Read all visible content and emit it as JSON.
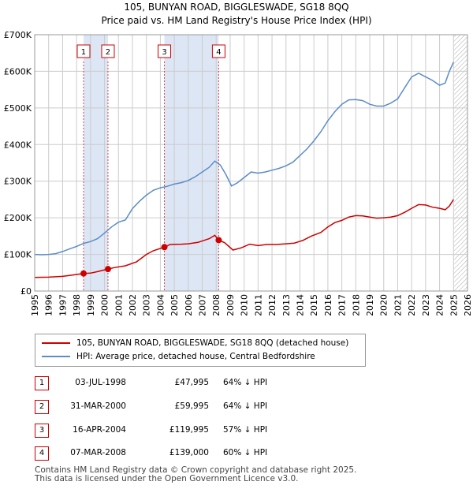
{
  "chart_data": {
    "type": "line",
    "title": "105, BUNYAN ROAD, BIGGLESWADE, SG18 8QQ",
    "subtitle": "Price paid vs. HM Land Registry's House Price Index (HPI)",
    "xlim": [
      1995,
      2026
    ],
    "ylim": [
      0,
      700000
    ],
    "x_ticks": [
      1995,
      1996,
      1997,
      1998,
      1999,
      2000,
      2001,
      2002,
      2003,
      2004,
      2005,
      2006,
      2007,
      2008,
      2009,
      2010,
      2011,
      2012,
      2013,
      2014,
      2015,
      2016,
      2017,
      2018,
      2019,
      2020,
      2021,
      2022,
      2023,
      2024,
      2025,
      2026
    ],
    "y_ticks": [
      0,
      100000,
      200000,
      300000,
      400000,
      500000,
      600000,
      700000
    ],
    "y_tick_labels": [
      "£0",
      "£100K",
      "£200K",
      "£300K",
      "£400K",
      "£500K",
      "£600K",
      "£700K"
    ],
    "shaded_ranges": [
      [
        1998.5,
        2000.25
      ],
      [
        2004.29,
        2008.18
      ]
    ],
    "forecast_start": 2025.05,
    "colors": {
      "property": "#cc0000",
      "hpi": "#5b8cc8",
      "shade": "#dde6f5",
      "grid": "#cccccc"
    },
    "series": [
      {
        "name": "105, BUNYAN ROAD, BIGGLESWADE, SG18 8QQ (detached house)",
        "color": "#cc0000",
        "points": [
          [
            1995.0,
            37000
          ],
          [
            1996.0,
            38000
          ],
          [
            1997.0,
            40000
          ],
          [
            1997.6,
            43000
          ],
          [
            1998.5,
            47995
          ],
          [
            1999.0,
            49000
          ],
          [
            1999.5,
            53000
          ],
          [
            2000.25,
            59995
          ],
          [
            2000.7,
            64000
          ],
          [
            2001.5,
            69000
          ],
          [
            2002.3,
            80000
          ],
          [
            2003.0,
            100000
          ],
          [
            2003.5,
            110000
          ],
          [
            2004.29,
            119995
          ],
          [
            2004.7,
            127000
          ],
          [
            2005.5,
            128000
          ],
          [
            2006.0,
            129000
          ],
          [
            2006.7,
            133000
          ],
          [
            2007.5,
            143000
          ],
          [
            2007.9,
            152000
          ],
          [
            2008.18,
            139000
          ],
          [
            2008.6,
            132000
          ],
          [
            2009.2,
            112000
          ],
          [
            2009.8,
            118000
          ],
          [
            2010.4,
            128000
          ],
          [
            2011.0,
            124000
          ],
          [
            2011.6,
            127000
          ],
          [
            2012.3,
            127000
          ],
          [
            2013.0,
            129000
          ],
          [
            2013.6,
            131000
          ],
          [
            2014.2,
            138000
          ],
          [
            2014.8,
            150000
          ],
          [
            2015.5,
            160000
          ],
          [
            2016.0,
            175000
          ],
          [
            2016.5,
            187000
          ],
          [
            2017.0,
            193000
          ],
          [
            2017.5,
            202000
          ],
          [
            2018.0,
            206000
          ],
          [
            2018.5,
            205000
          ],
          [
            2019.0,
            202000
          ],
          [
            2019.5,
            199000
          ],
          [
            2020.0,
            200000
          ],
          [
            2020.5,
            202000
          ],
          [
            2021.0,
            206000
          ],
          [
            2021.5,
            215000
          ],
          [
            2022.0,
            226000
          ],
          [
            2022.5,
            236000
          ],
          [
            2023.0,
            235000
          ],
          [
            2023.5,
            229000
          ],
          [
            2024.0,
            226000
          ],
          [
            2024.4,
            222000
          ],
          [
            2024.7,
            232000
          ],
          [
            2025.0,
            250000
          ]
        ]
      },
      {
        "name": "HPI: Average price, detached house, Central Bedfordshire",
        "color": "#5b8cc8",
        "points": [
          [
            1995.0,
            100000
          ],
          [
            1995.5,
            99000
          ],
          [
            1996.0,
            100000
          ],
          [
            1996.5,
            102000
          ],
          [
            1997.0,
            108000
          ],
          [
            1997.5,
            115000
          ],
          [
            1998.0,
            122000
          ],
          [
            1998.5,
            130000
          ],
          [
            1999.0,
            135000
          ],
          [
            1999.5,
            143000
          ],
          [
            2000.0,
            158000
          ],
          [
            2000.5,
            175000
          ],
          [
            2001.0,
            188000
          ],
          [
            2001.5,
            194000
          ],
          [
            2002.0,
            225000
          ],
          [
            2002.5,
            245000
          ],
          [
            2003.0,
            262000
          ],
          [
            2003.5,
            275000
          ],
          [
            2004.0,
            282000
          ],
          [
            2004.5,
            286000
          ],
          [
            2005.0,
            292000
          ],
          [
            2005.5,
            296000
          ],
          [
            2006.0,
            302000
          ],
          [
            2006.5,
            312000
          ],
          [
            2007.0,
            325000
          ],
          [
            2007.5,
            338000
          ],
          [
            2007.9,
            355000
          ],
          [
            2008.3,
            344000
          ],
          [
            2008.7,
            318000
          ],
          [
            2009.1,
            287000
          ],
          [
            2009.5,
            295000
          ],
          [
            2010.0,
            310000
          ],
          [
            2010.5,
            325000
          ],
          [
            2011.0,
            322000
          ],
          [
            2011.5,
            325000
          ],
          [
            2012.0,
            330000
          ],
          [
            2012.5,
            335000
          ],
          [
            2013.0,
            342000
          ],
          [
            2013.5,
            352000
          ],
          [
            2014.0,
            370000
          ],
          [
            2014.5,
            388000
          ],
          [
            2015.0,
            410000
          ],
          [
            2015.5,
            435000
          ],
          [
            2016.0,
            465000
          ],
          [
            2016.5,
            490000
          ],
          [
            2017.0,
            510000
          ],
          [
            2017.5,
            522000
          ],
          [
            2018.0,
            523000
          ],
          [
            2018.5,
            520000
          ],
          [
            2019.0,
            510000
          ],
          [
            2019.5,
            505000
          ],
          [
            2020.0,
            505000
          ],
          [
            2020.5,
            513000
          ],
          [
            2021.0,
            525000
          ],
          [
            2021.5,
            555000
          ],
          [
            2022.0,
            585000
          ],
          [
            2022.5,
            595000
          ],
          [
            2023.0,
            585000
          ],
          [
            2023.5,
            575000
          ],
          [
            2024.0,
            562000
          ],
          [
            2024.4,
            568000
          ],
          [
            2024.7,
            600000
          ],
          [
            2025.0,
            625000
          ]
        ]
      }
    ],
    "sales": [
      {
        "label": "1",
        "x": 1998.5,
        "y": 47995
      },
      {
        "label": "2",
        "x": 2000.25,
        "y": 59995
      },
      {
        "label": "3",
        "x": 2004.29,
        "y": 119995
      },
      {
        "label": "4",
        "x": 2008.18,
        "y": 139000
      }
    ]
  },
  "legend": [
    {
      "label": "105, BUNYAN ROAD, BIGGLESWADE, SG18 8QQ (detached house)",
      "color": "#cc0000"
    },
    {
      "label": "HPI: Average price, detached house, Central Bedfordshire",
      "color": "#5b8cc8"
    }
  ],
  "transactions": [
    {
      "num": "1",
      "date": "03-JUL-1998",
      "price": "£47,995",
      "hpi": "64% ↓ HPI"
    },
    {
      "num": "2",
      "date": "31-MAR-2000",
      "price": "£59,995",
      "hpi": "64% ↓ HPI"
    },
    {
      "num": "3",
      "date": "16-APR-2004",
      "price": "£119,995",
      "hpi": "57% ↓ HPI"
    },
    {
      "num": "4",
      "date": "07-MAR-2008",
      "price": "£139,000",
      "hpi": "60% ↓ HPI"
    }
  ],
  "footer": {
    "line1": "Contains HM Land Registry data © Crown copyright and database right 2025.",
    "line2": "This data is licensed under the Open Government Licence v3.0."
  }
}
